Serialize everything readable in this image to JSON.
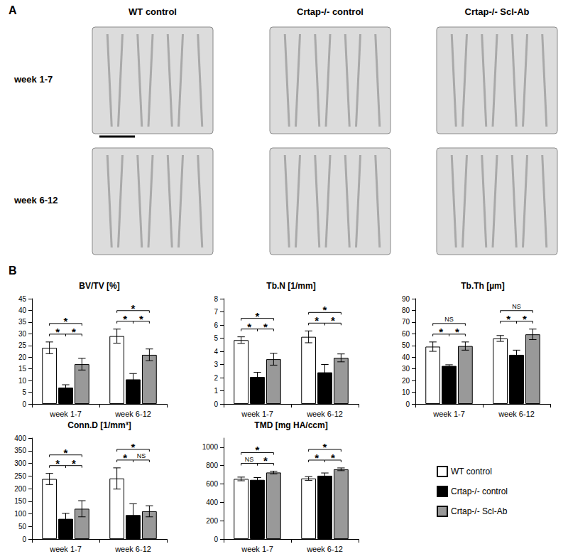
{
  "panel_a": {
    "label": "A",
    "columns": [
      "WT control",
      "Crtap-/- control",
      "Crtap-/- Scl-Ab"
    ],
    "rows": [
      "week 1-7",
      "week 6-12"
    ]
  },
  "panel_b": {
    "label": "B"
  },
  "chart_data": [
    {
      "type": "bar",
      "title": "BV/TV [%]",
      "categories": [
        "week 1-7",
        "week 6-12"
      ],
      "series": [
        {
          "name": "WT control",
          "color": "#ffffff",
          "values": [
            24,
            29
          ],
          "errors": [
            2.5,
            3
          ]
        },
        {
          "name": "Crtap-/- control",
          "color": "#000000",
          "values": [
            7,
            10.5
          ],
          "errors": [
            1.2,
            2.5
          ]
        },
        {
          "name": "Crtap-/- Scl-Ab",
          "color": "#999999",
          "values": [
            17,
            21
          ],
          "errors": [
            2.5,
            2.5
          ]
        }
      ],
      "ylim": [
        0,
        45
      ],
      "yticks": [
        0,
        5,
        10,
        15,
        20,
        25,
        30,
        35,
        40,
        45
      ],
      "grid": false,
      "legend": "lower right",
      "brackets": [
        {
          "category": "week 1-7",
          "between": [
            "WT control",
            "Crtap-/- control"
          ],
          "label": "*"
        },
        {
          "category": "week 1-7",
          "between": [
            "Crtap-/- control",
            "Crtap-/- Scl-Ab"
          ],
          "label": "*"
        },
        {
          "category": "week 1-7",
          "between": [
            "WT control",
            "Crtap-/- Scl-Ab"
          ],
          "label": "*"
        },
        {
          "category": "week 6-12",
          "between": [
            "WT control",
            "Crtap-/- control"
          ],
          "label": "*"
        },
        {
          "category": "week 6-12",
          "between": [
            "Crtap-/- control",
            "Crtap-/- Scl-Ab"
          ],
          "label": "*"
        },
        {
          "category": "week 6-12",
          "between": [
            "WT control",
            "Crtap-/- Scl-Ab"
          ],
          "label": "*"
        }
      ]
    },
    {
      "type": "bar",
      "title": "Tb.N [1/mm]",
      "categories": [
        "week 1-7",
        "week 6-12"
      ],
      "series": [
        {
          "name": "WT control",
          "color": "#ffffff",
          "values": [
            4.85,
            5.1
          ],
          "errors": [
            0.25,
            0.45
          ]
        },
        {
          "name": "Crtap-/- control",
          "color": "#000000",
          "values": [
            2.05,
            2.4
          ],
          "errors": [
            0.35,
            0.6
          ]
        },
        {
          "name": "Crtap-/- Scl-Ab",
          "color": "#999999",
          "values": [
            3.4,
            3.5
          ],
          "errors": [
            0.45,
            0.3
          ]
        }
      ],
      "ylim": [
        0,
        8
      ],
      "yticks": [
        0,
        1,
        2,
        3,
        4,
        5,
        6,
        7,
        8
      ],
      "grid": false,
      "legend": "lower right",
      "brackets": [
        {
          "category": "week 1-7",
          "between": [
            "WT control",
            "Crtap-/- control"
          ],
          "label": "*"
        },
        {
          "category": "week 1-7",
          "between": [
            "Crtap-/- control",
            "Crtap-/- Scl-Ab"
          ],
          "label": "*"
        },
        {
          "category": "week 1-7",
          "between": [
            "WT control",
            "Crtap-/- Scl-Ab"
          ],
          "label": "*"
        },
        {
          "category": "week 6-12",
          "between": [
            "WT control",
            "Crtap-/- control"
          ],
          "label": "*"
        },
        {
          "category": "week 6-12",
          "between": [
            "Crtap-/- control",
            "Crtap-/- Scl-Ab"
          ],
          "label": "*"
        },
        {
          "category": "week 6-12",
          "between": [
            "WT control",
            "Crtap-/- Scl-Ab"
          ],
          "label": "*"
        }
      ]
    },
    {
      "type": "bar",
      "title": "Tb.Th [µm]",
      "categories": [
        "week 1-7",
        "week 6-12"
      ],
      "series": [
        {
          "name": "WT control",
          "color": "#ffffff",
          "values": [
            49,
            56
          ],
          "errors": [
            4,
            2.5
          ]
        },
        {
          "name": "Crtap-/- control",
          "color": "#000000",
          "values": [
            32.5,
            42
          ],
          "errors": [
            1,
            4
          ]
        },
        {
          "name": "Crtap-/- Scl-Ab",
          "color": "#999999",
          "values": [
            49.5,
            59.5
          ],
          "errors": [
            3.5,
            4.5
          ]
        }
      ],
      "ylim": [
        0,
        90
      ],
      "yticks": [
        0,
        10,
        20,
        30,
        40,
        50,
        60,
        70,
        80,
        90
      ],
      "grid": false,
      "legend": "lower right",
      "brackets": [
        {
          "category": "week 1-7",
          "between": [
            "WT control",
            "Crtap-/- control"
          ],
          "label": "*"
        },
        {
          "category": "week 1-7",
          "between": [
            "Crtap-/- control",
            "Crtap-/- Scl-Ab"
          ],
          "label": "*"
        },
        {
          "category": "week 1-7",
          "between": [
            "WT control",
            "Crtap-/- Scl-Ab"
          ],
          "label": "NS"
        },
        {
          "category": "week 6-12",
          "between": [
            "WT control",
            "Crtap-/- control"
          ],
          "label": "*"
        },
        {
          "category": "week 6-12",
          "between": [
            "Crtap-/- control",
            "Crtap-/- Scl-Ab"
          ],
          "label": "*"
        },
        {
          "category": "week 6-12",
          "between": [
            "WT control",
            "Crtap-/- Scl-Ab"
          ],
          "label": "NS"
        }
      ]
    },
    {
      "type": "bar",
      "title": "Conn.D [1/mm³]",
      "categories": [
        "week 1-7",
        "week 6-12"
      ],
      "series": [
        {
          "name": "WT control",
          "color": "#ffffff",
          "values": [
            238,
            240
          ],
          "errors": [
            22,
            42
          ]
        },
        {
          "name": "Crtap-/- control",
          "color": "#000000",
          "values": [
            80,
            95
          ],
          "errors": [
            22,
            45
          ]
        },
        {
          "name": "Crtap-/- Scl-Ab",
          "color": "#999999",
          "values": [
            120,
            110
          ],
          "errors": [
            32,
            22
          ]
        }
      ],
      "ylim": [
        0,
        400
      ],
      "yticks": [
        0,
        50,
        100,
        150,
        200,
        250,
        300,
        350,
        400
      ],
      "grid": false,
      "legend": "lower right",
      "brackets": [
        {
          "category": "week 1-7",
          "between": [
            "WT control",
            "Crtap-/- control"
          ],
          "label": "*"
        },
        {
          "category": "week 1-7",
          "between": [
            "Crtap-/- control",
            "Crtap-/- Scl-Ab"
          ],
          "label": "*"
        },
        {
          "category": "week 1-7",
          "between": [
            "WT control",
            "Crtap-/- Scl-Ab"
          ],
          "label": "*"
        },
        {
          "category": "week 6-12",
          "between": [
            "WT control",
            "Crtap-/- control"
          ],
          "label": "*"
        },
        {
          "category": "week 6-12",
          "between": [
            "Crtap-/- control",
            "Crtap-/- Scl-Ab"
          ],
          "label": "NS"
        },
        {
          "category": "week 6-12",
          "between": [
            "WT control",
            "Crtap-/- Scl-Ab"
          ],
          "label": "*"
        }
      ]
    },
    {
      "type": "bar",
      "title": "TMD [mg HA/ccm]",
      "categories": [
        "week 1-7",
        "week 6-12"
      ],
      "series": [
        {
          "name": "WT control",
          "color": "#ffffff",
          "values": [
            655,
            660
          ],
          "errors": [
            20,
            20
          ]
        },
        {
          "name": "Crtap-/- control",
          "color": "#000000",
          "values": [
            645,
            690
          ],
          "errors": [
            25,
            30
          ]
        },
        {
          "name": "Crtap-/- Scl-Ab",
          "color": "#999999",
          "values": [
            725,
            760
          ],
          "errors": [
            15,
            15
          ]
        }
      ],
      "ylim": [
        0,
        1100
      ],
      "yticks": [
        0,
        200,
        400,
        600,
        800,
        1000
      ],
      "grid": false,
      "legend": "lower right",
      "brackets": [
        {
          "category": "week 1-7",
          "between": [
            "WT control",
            "Crtap-/- control"
          ],
          "label": "NS"
        },
        {
          "category": "week 1-7",
          "between": [
            "Crtap-/- control",
            "Crtap-/- Scl-Ab"
          ],
          "label": "*"
        },
        {
          "category": "week 1-7",
          "between": [
            "WT control",
            "Crtap-/- Scl-Ab"
          ],
          "label": "*"
        },
        {
          "category": "week 6-12",
          "between": [
            "WT control",
            "Crtap-/- control"
          ],
          "label": "*"
        },
        {
          "category": "week 6-12",
          "between": [
            "Crtap-/- control",
            "Crtap-/- Scl-Ab"
          ],
          "label": "*"
        },
        {
          "category": "week 6-12",
          "between": [
            "WT control",
            "Crtap-/- Scl-Ab"
          ],
          "label": "*"
        }
      ]
    }
  ]
}
